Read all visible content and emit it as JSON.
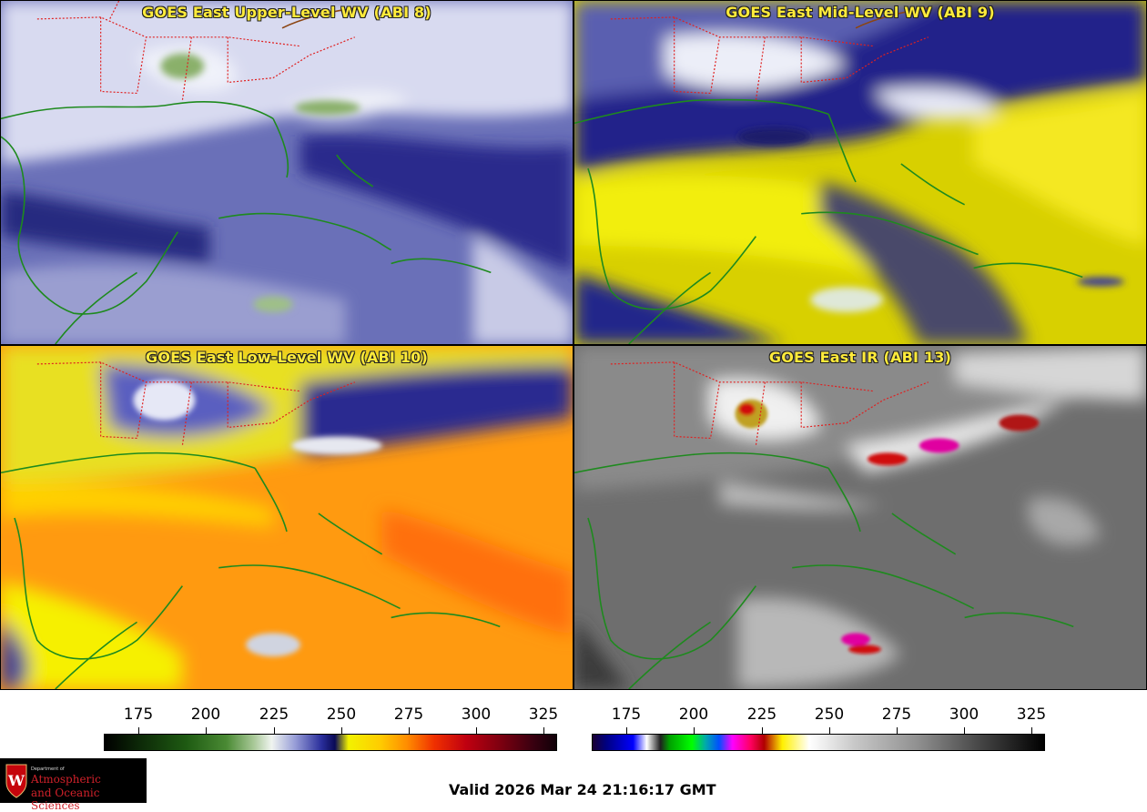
{
  "panels": [
    {
      "id": "upper",
      "title": "GOES East Upper-Level WV (ABI 8)"
    },
    {
      "id": "mid",
      "title": "GOES East Mid-Level WV (ABI 9)"
    },
    {
      "id": "low",
      "title": "GOES East Low-Level WV (ABI 10)"
    },
    {
      "id": "ir",
      "title": "GOES East IR (ABI 13)"
    }
  ],
  "colorbars": [
    {
      "name": "water-vapor",
      "ticks": [
        "175",
        "200",
        "225",
        "250",
        "275",
        "300",
        "325"
      ]
    },
    {
      "name": "infrared",
      "ticks": [
        "175",
        "200",
        "225",
        "250",
        "275",
        "300",
        "325"
      ]
    }
  ],
  "footer": {
    "valid": "Valid 2026 Mar 24 21:16:17 GMT"
  },
  "logo": {
    "department": "Department of",
    "line1": "Atmospheric",
    "line2": "and Oceanic Sciences",
    "color": "#d0212a"
  },
  "colors": {
    "title": "#ffeb3b",
    "coast": "#1e8a1e",
    "state_borders": "#e02020"
  }
}
